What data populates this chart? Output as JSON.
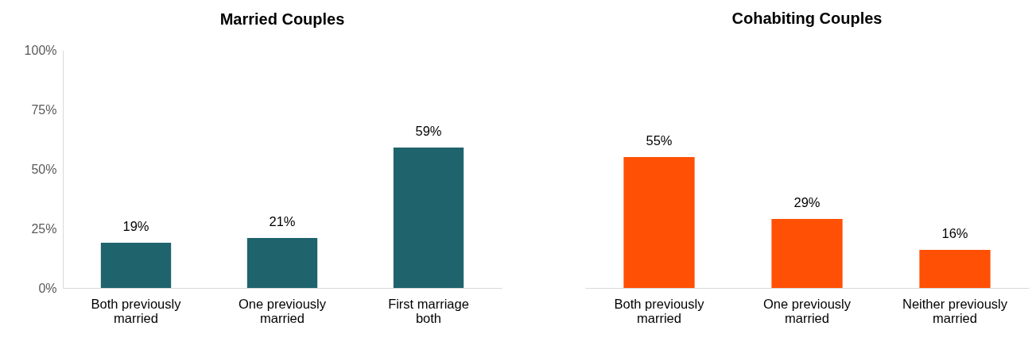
{
  "chart_data": [
    {
      "type": "bar",
      "title": "Married Couples",
      "categories": [
        "Both previously married",
        "One previously married",
        "First marriage both"
      ],
      "values": [
        19,
        21,
        59
      ],
      "value_labels": [
        "19%",
        "21%",
        "59%"
      ],
      "color": "#1f636c",
      "ylim": [
        0,
        100
      ],
      "yticks": [
        {
          "value": 0,
          "label": "0%"
        },
        {
          "value": 25,
          "label": "25%"
        },
        {
          "value": 50,
          "label": "50%"
        },
        {
          "value": 75,
          "label": "75%"
        },
        {
          "value": 100,
          "label": "100%"
        }
      ],
      "grid": false
    },
    {
      "type": "bar",
      "title": "Cohabiting Couples",
      "categories": [
        "Both previously married",
        "One previously married",
        "Neither previously married"
      ],
      "values": [
        55,
        29,
        16
      ],
      "value_labels": [
        "55%",
        "29%",
        "16%"
      ],
      "color": "#ff5005",
      "ylim": [
        0,
        100
      ],
      "tick_labels": "x"
    }
  ]
}
